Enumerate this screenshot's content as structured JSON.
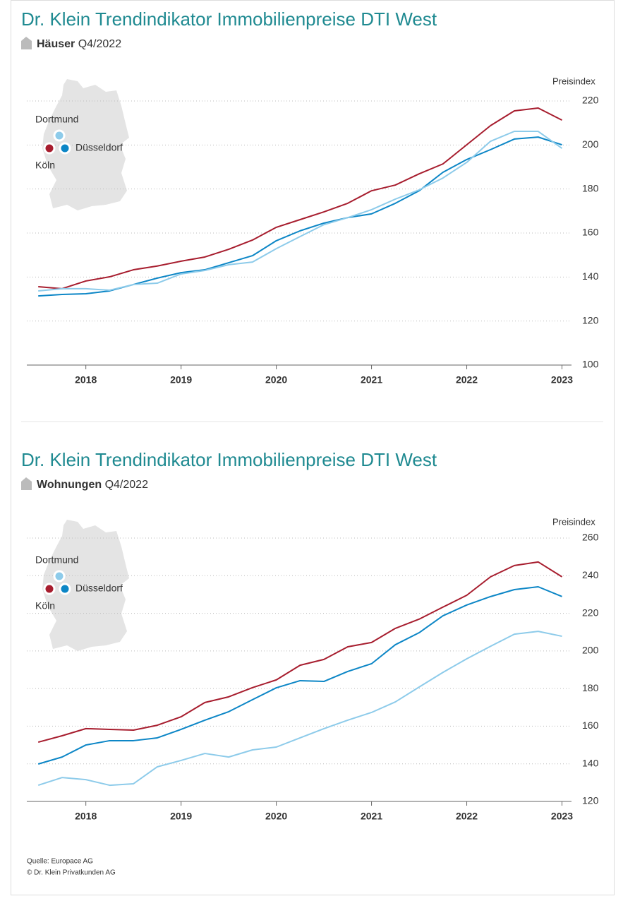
{
  "chart_data": [
    {
      "type": "line",
      "title": "Dr. Klein Trendindikator Immobilienpreise DTI West",
      "subtitle_bold": "Häuser",
      "subtitle": "Q4/2022",
      "y_label": "Preisindex",
      "x": [
        2017.5,
        2017.75,
        2018,
        2018.25,
        2018.5,
        2018.75,
        2019,
        2019.25,
        2019.5,
        2019.75,
        2020,
        2020.25,
        2020.5,
        2020.75,
        2021,
        2021.25,
        2021.5,
        2021.75,
        2022,
        2022.25,
        2022.5,
        2022.75,
        2023
      ],
      "series": [
        {
          "name": "Köln",
          "color": "#a71d2e",
          "values": [
            135.6,
            134.7,
            138.2,
            140.1,
            143.3,
            145,
            147.2,
            149.1,
            152.6,
            156.8,
            162.6,
            166.1,
            169.6,
            173.5,
            179.2,
            181.8,
            186.9,
            191.4,
            200.1,
            208.8,
            215.5,
            216.8,
            211.3
          ]
        },
        {
          "name": "Düsseldorf",
          "color": "#0c86c6",
          "values": [
            131.4,
            132.1,
            132.4,
            133.7,
            136.6,
            139.5,
            142,
            143.3,
            146.5,
            149.7,
            156.5,
            161,
            164.5,
            167,
            168.7,
            173.5,
            179.2,
            187.6,
            193.4,
            197.9,
            202.7,
            203.6,
            200.1
          ]
        },
        {
          "name": "Dortmund",
          "color": "#8dcbea",
          "values": [
            133.7,
            134.7,
            134.7,
            134,
            136.6,
            137.2,
            141.4,
            143,
            145.6,
            146.8,
            152.9,
            158.4,
            163.8,
            167,
            170.6,
            175.4,
            179.6,
            185,
            192.1,
            201.7,
            206.2,
            206.2,
            198.5
          ]
        }
      ],
      "xlim": [
        2017.38,
        2023.1
      ],
      "xticks": [
        2018,
        2019,
        2020,
        2021,
        2022,
        2023
      ],
      "ylim": [
        100,
        220
      ],
      "yticks": [
        100,
        120,
        140,
        160,
        180,
        200,
        220
      ],
      "grid": true
    },
    {
      "type": "line",
      "title": "Dr. Klein Trendindikator Immobilienpreise DTI West",
      "subtitle_bold": "Wohnungen",
      "subtitle": "Q4/2022",
      "y_label": "Preisindex",
      "x": [
        2017.5,
        2017.75,
        2018,
        2018.25,
        2018.5,
        2018.75,
        2019,
        2019.25,
        2019.5,
        2019.75,
        2020,
        2020.25,
        2020.5,
        2020.75,
        2021,
        2021.25,
        2021.5,
        2021.75,
        2022,
        2022.25,
        2022.5,
        2022.75,
        2023
      ],
      "series": [
        {
          "name": "Köln",
          "color": "#a71d2e",
          "values": [
            151.5,
            154.9,
            158.7,
            158.3,
            157.9,
            160.5,
            165,
            172.6,
            175.6,
            180.5,
            184.6,
            192.4,
            195.5,
            202.2,
            204.5,
            212,
            216.9,
            223.3,
            229.6,
            239.4,
            245.4,
            247.3,
            239.4
          ]
        },
        {
          "name": "Düsseldorf",
          "color": "#0c86c6",
          "values": [
            139.9,
            143.6,
            150,
            152.3,
            152.3,
            153.8,
            158.3,
            163.2,
            167.7,
            174.1,
            180.4,
            184.2,
            183.8,
            189.1,
            193.2,
            203.3,
            209.7,
            218.7,
            224.4,
            228.9,
            232.6,
            234.1,
            228.9
          ]
        },
        {
          "name": "Dortmund",
          "color": "#8dcbea",
          "values": [
            128.6,
            132.7,
            131.6,
            128.6,
            129.4,
            138.4,
            141.8,
            145.5,
            143.6,
            147.4,
            148.9,
            153.8,
            158.7,
            163.2,
            167.3,
            172.9,
            180.8,
            188.6,
            195.8,
            202.5,
            208.9,
            210.4,
            207.8
          ]
        }
      ],
      "xlim": [
        2017.38,
        2023.1
      ],
      "xticks": [
        2018,
        2019,
        2020,
        2021,
        2022,
        2023
      ],
      "ylim": [
        120,
        260
      ],
      "yticks": [
        120,
        140,
        160,
        180,
        200,
        220,
        240,
        260
      ],
      "grid": true
    }
  ],
  "footer": [
    "Quelle: Europace AG",
    "© Dr. Klein Privatkunden AG"
  ]
}
